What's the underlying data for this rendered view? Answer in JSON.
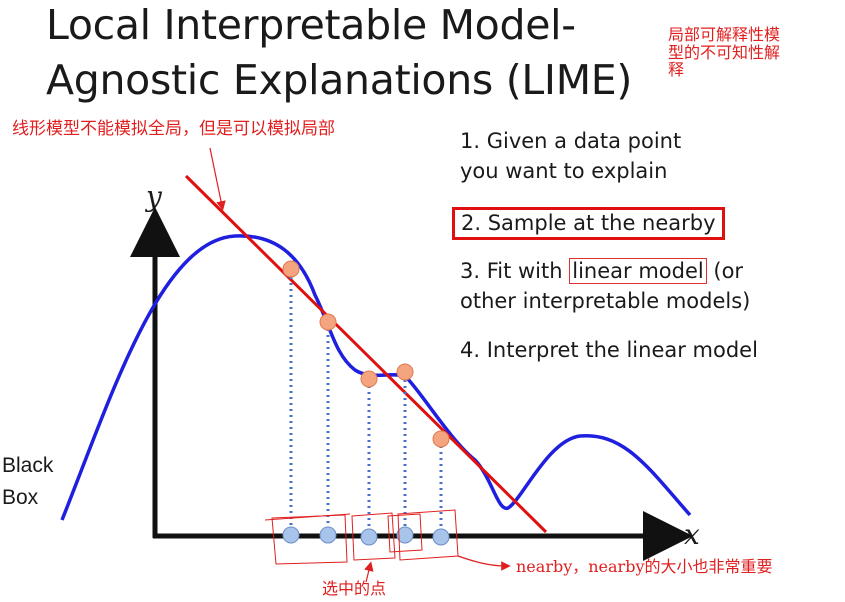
{
  "slide": {
    "title_line1": "Local Interpretable Model-",
    "title_line2": "Agnostic Explanations (LIME)",
    "title_note": [
      "局部可解释性模",
      "型的不可知性解",
      "释"
    ],
    "steps": {
      "step1": [
        "1. Given a data point",
        "you want to explain"
      ],
      "step2": "2. Sample at the nearby",
      "step3_prefix": "3. Fit with ",
      "step3_highlight": "linear model",
      "step3_suffix": " (or",
      "step3_line2": "other interpretable models)",
      "step4": "4. Interpret the linear model"
    },
    "annotations": {
      "linear_note": "线形模型不能模拟全局，但是可以模拟局部",
      "nearby_note": "nearby，nearby的大小也非常重要",
      "chosen_note": "选中的点"
    },
    "black_box": [
      "Black",
      "Box"
    ],
    "axes": {
      "y": "y",
      "x": "x"
    },
    "colors": {
      "curve": "#1f1fe0",
      "fit_line": "#e01010",
      "sample_top": "#f4a57f",
      "sample_bottom": "#a9c4ea",
      "dotted": "#4a6fc8",
      "annotation": "#e02020"
    }
  }
}
